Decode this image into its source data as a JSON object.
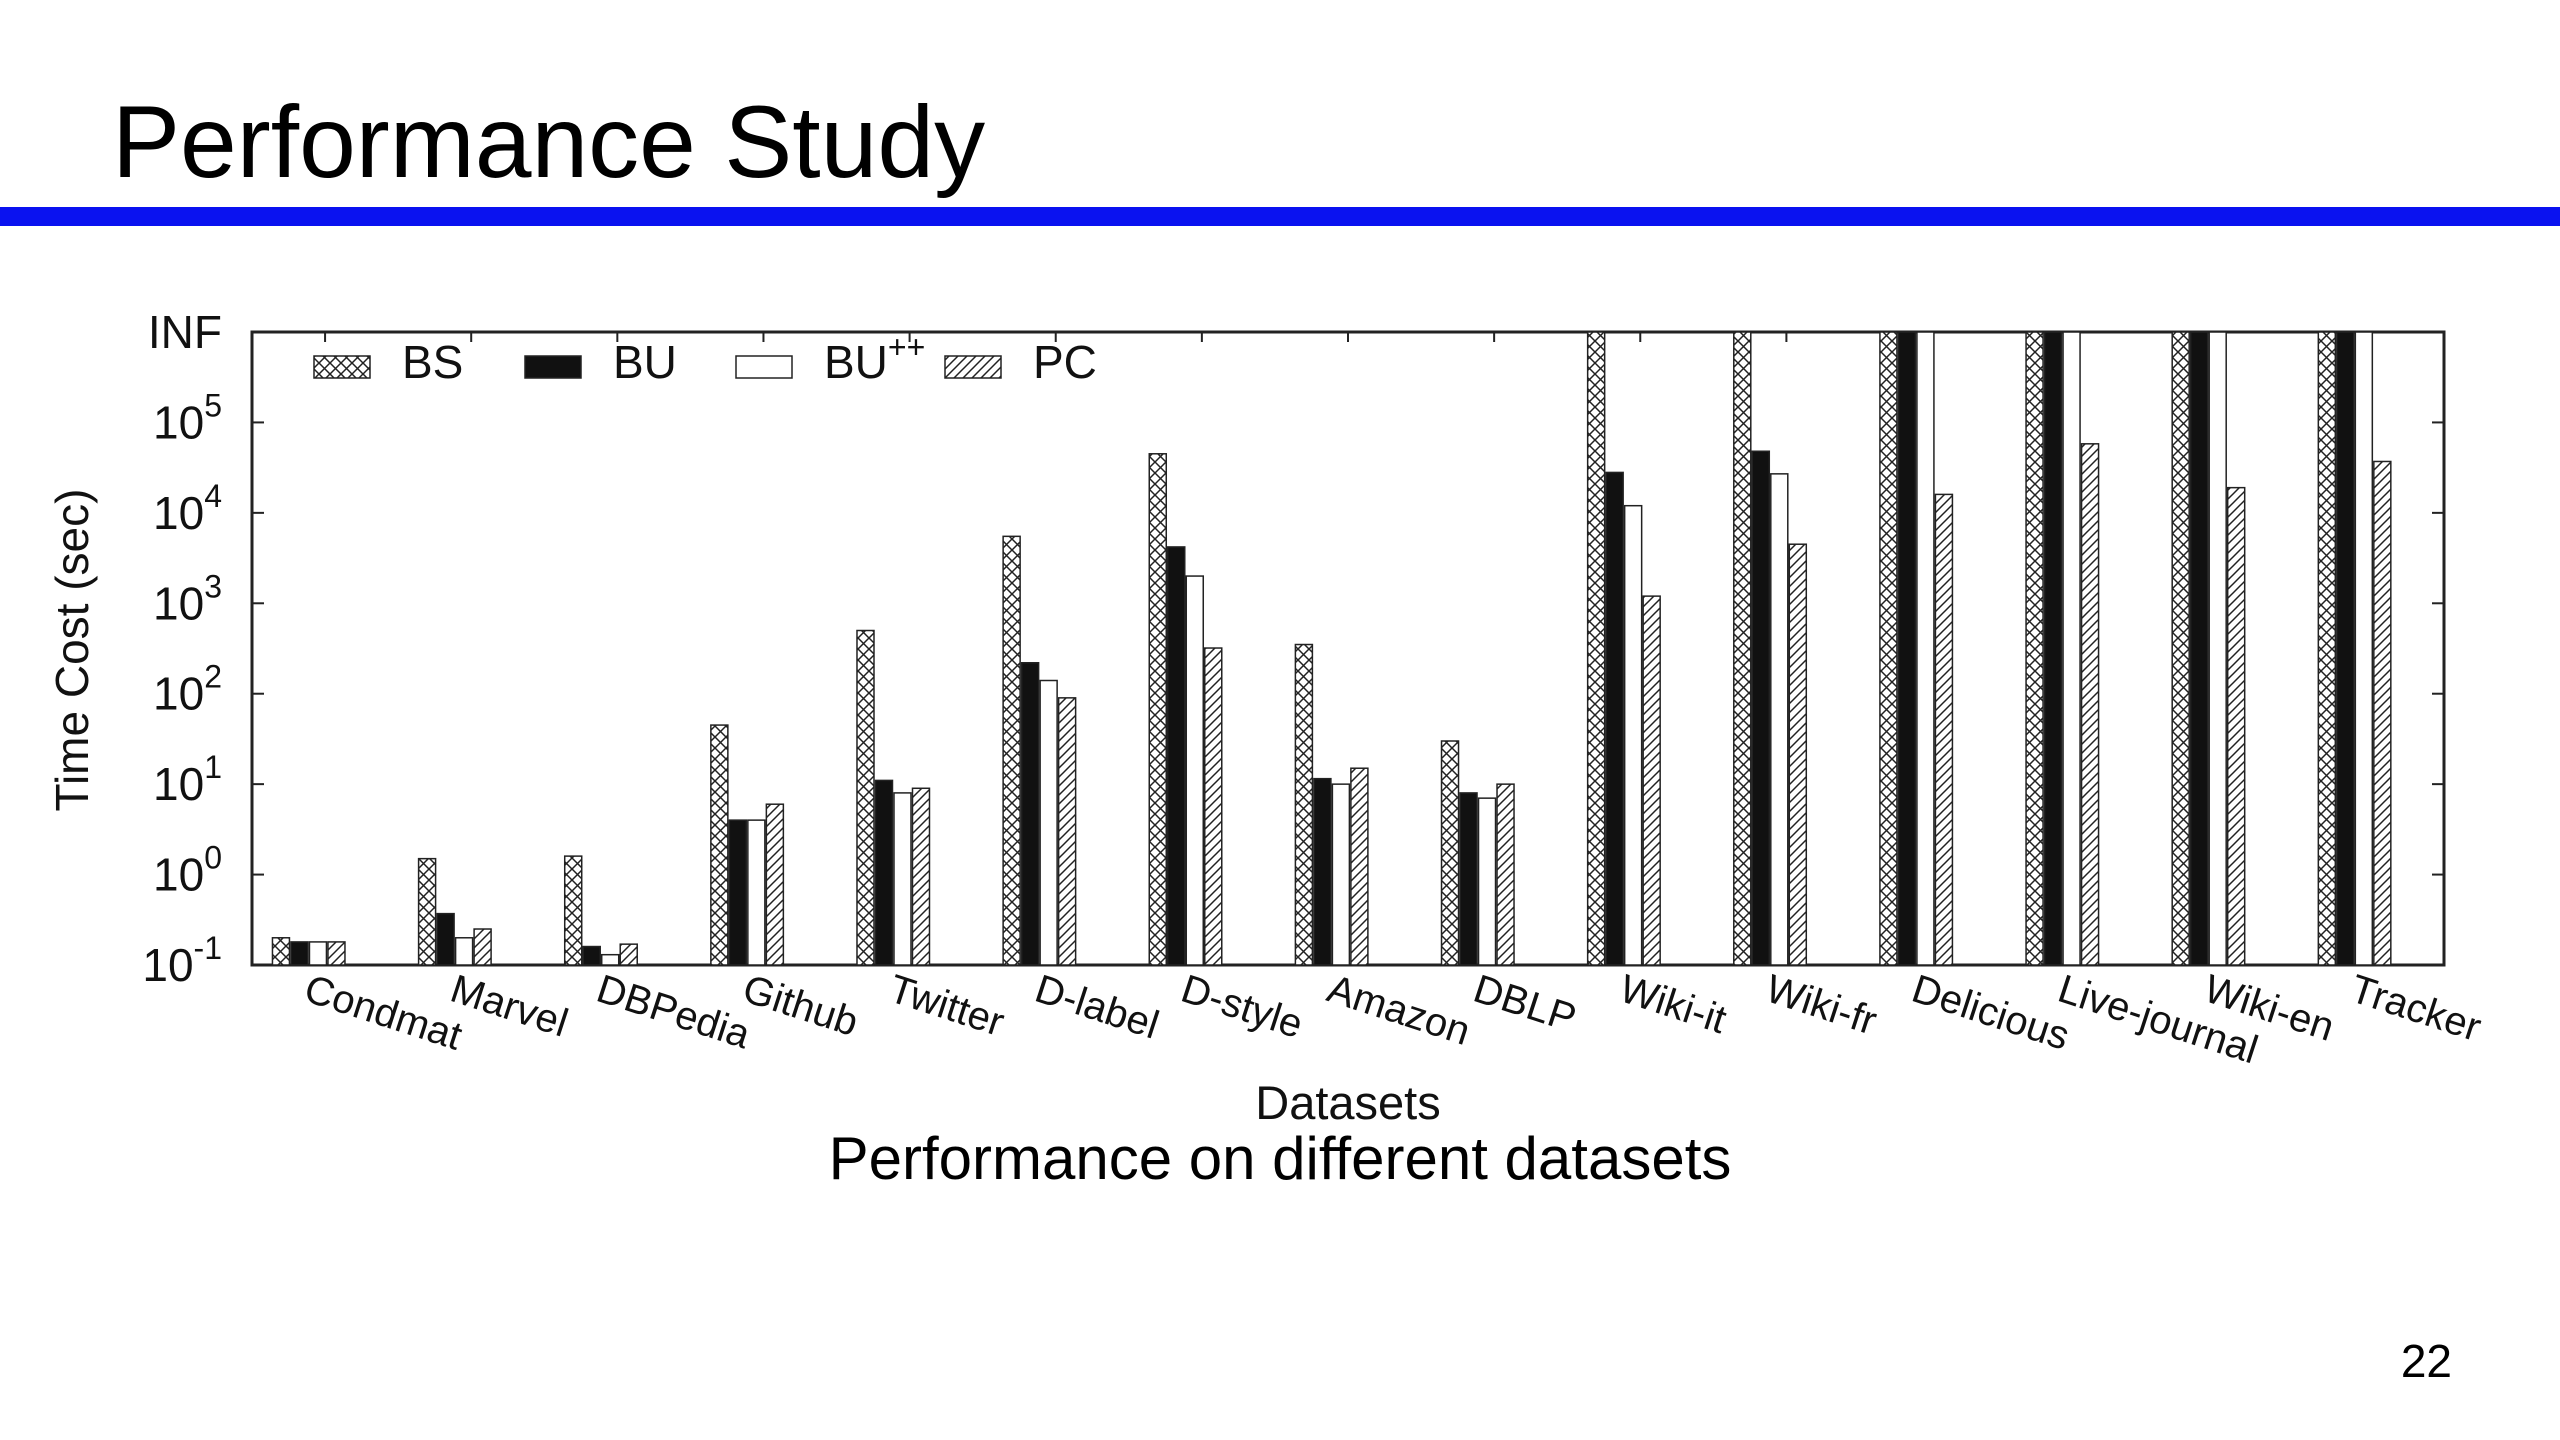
{
  "slide": {
    "title": "Performance Study",
    "caption": "Performance on different datasets",
    "page_number": "22",
    "accent_color": "#0a12f0"
  },
  "chart_data": {
    "type": "bar",
    "title": "",
    "xlabel": "Datasets",
    "ylabel": "Time Cost (sec)",
    "yscale": "log",
    "ylim": [
      0.1,
      1000000
    ],
    "y_ticks": [
      {
        "base": "10",
        "exp": "-1",
        "value": 0.1
      },
      {
        "base": "10",
        "exp": "0",
        "value": 1
      },
      {
        "base": "10",
        "exp": "1",
        "value": 10
      },
      {
        "base": "10",
        "exp": "2",
        "value": 100
      },
      {
        "base": "10",
        "exp": "3",
        "value": 1000
      },
      {
        "base": "10",
        "exp": "4",
        "value": 10000
      },
      {
        "base": "10",
        "exp": "5",
        "value": 100000
      },
      {
        "base": "INF",
        "exp": "",
        "value": "INF"
      }
    ],
    "legend_position": "top-left",
    "grid": false,
    "categories": [
      "Condmat",
      "Marvel",
      "DBPedia",
      "Github",
      "Twitter",
      "D-label",
      "D-style",
      "Amazon",
      "DBLP",
      "Wiki-it",
      "Wiki-fr",
      "Delicious",
      "Live-journal",
      "Wiki-en",
      "Tracker"
    ],
    "series": [
      {
        "name": "BS",
        "legend_base": "BS",
        "legend_sup": "",
        "pattern": "crosshatch",
        "values": [
          0.2,
          1.5,
          1.6,
          45,
          500,
          5500,
          45000,
          350,
          30,
          "INF",
          "INF",
          "INF",
          "INF",
          "INF",
          "INF"
        ]
      },
      {
        "name": "BU",
        "legend_base": "BU",
        "legend_sup": "",
        "pattern": "solid",
        "values": [
          0.18,
          0.37,
          0.16,
          4,
          11,
          220,
          4200,
          11.5,
          8,
          28000,
          48000,
          "INF",
          "INF",
          "INF",
          "INF"
        ]
      },
      {
        "name": "BU++",
        "legend_base": "BU",
        "legend_sup": "++",
        "pattern": "empty",
        "values": [
          0.18,
          0.2,
          0.13,
          4,
          8,
          140,
          2000,
          10,
          7,
          12000,
          27000,
          "INF",
          "INF",
          "INF",
          "INF"
        ]
      },
      {
        "name": "PC",
        "legend_base": "PC",
        "legend_sup": "",
        "pattern": "diagonal",
        "values": [
          0.18,
          0.25,
          0.17,
          6,
          9,
          90,
          320,
          15,
          10,
          1200,
          4500,
          16000,
          58000,
          19000,
          37000
        ]
      }
    ]
  }
}
